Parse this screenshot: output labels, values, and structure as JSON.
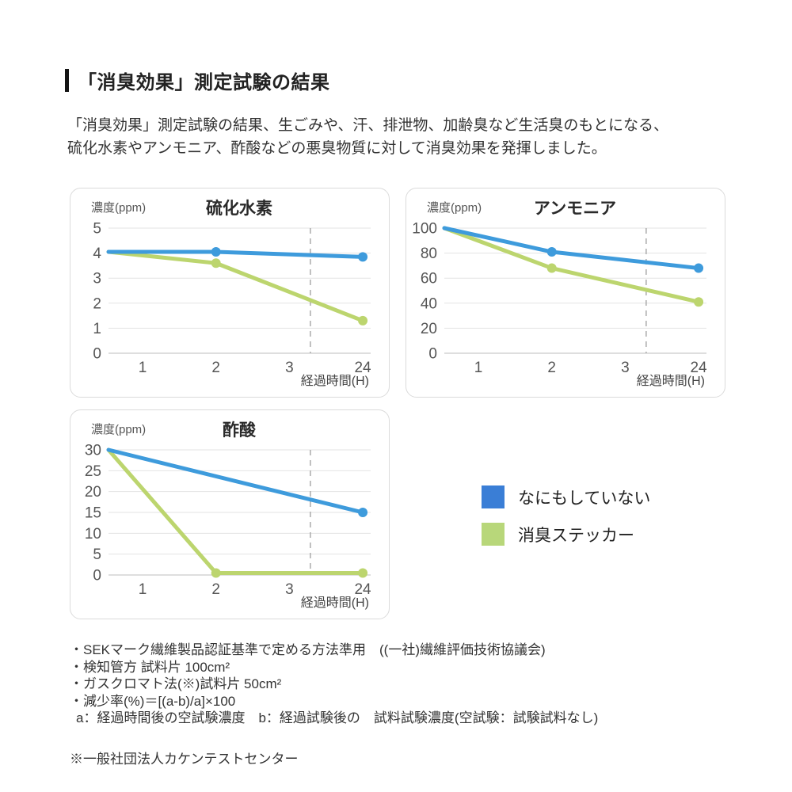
{
  "page": {
    "title": "「消臭効果」測定試験の結果",
    "intro": "「消臭効果」測定試験の結果、生ごみや、汗、排泄物、加齢臭など生活臭のもとになる、\n硫化水素やアンモニア、酢酸などの悪臭物質に対して消臭効果を発揮しました。"
  },
  "colors": {
    "blue_line": "#3E9BDC",
    "green_line": "#BCD56E",
    "blue_legend": "#3A7ED6",
    "green_legend": "#B8D77A",
    "grid": "#E3E3E3",
    "axis": "#C9C9C9",
    "break_line": "#ABABAB",
    "tick_text": "#555555"
  },
  "legend": {
    "items": [
      {
        "key": "untreated",
        "label": "なにもしていない",
        "color": "#3A7ED6"
      },
      {
        "key": "sticker",
        "label": "消臭ステッカー",
        "color": "#B8D77A"
      }
    ]
  },
  "chart_data": [
    {
      "type": "line",
      "id": "hydrogen-sulfide",
      "title": "硫化水素",
      "ylabel": "濃度(ppm)",
      "xlabel": "経過時間(H)",
      "ylim": [
        0,
        5
      ],
      "y_ticks": [
        0,
        1,
        2,
        3,
        4,
        5
      ],
      "x_ticks": [
        "1",
        "2",
        "3",
        "24"
      ],
      "axis_break_between": [
        "3",
        "24"
      ],
      "grid": true,
      "series": [
        {
          "key": "untreated",
          "name": "なにもしていない",
          "color": "#3E9BDC",
          "points": [
            {
              "x": "start",
              "y": 4.05,
              "dot": false
            },
            {
              "x": "2",
              "y": 4.05,
              "dot": true
            },
            {
              "x": "24",
              "y": 3.85,
              "dot": true
            }
          ]
        },
        {
          "key": "sticker",
          "name": "消臭ステッカー",
          "color": "#BCD56E",
          "points": [
            {
              "x": "start",
              "y": 4.05,
              "dot": false
            },
            {
              "x": "2",
              "y": 3.6,
              "dot": true
            },
            {
              "x": "24",
              "y": 1.3,
              "dot": true
            }
          ]
        }
      ]
    },
    {
      "type": "line",
      "id": "ammonia",
      "title": "アンモニア",
      "ylabel": "濃度(ppm)",
      "xlabel": "経過時間(H)",
      "ylim": [
        0,
        100
      ],
      "y_ticks": [
        0,
        20,
        40,
        60,
        80,
        100
      ],
      "x_ticks": [
        "1",
        "2",
        "3",
        "24"
      ],
      "axis_break_between": [
        "3",
        "24"
      ],
      "grid": true,
      "series": [
        {
          "key": "untreated",
          "name": "なにもしていない",
          "color": "#3E9BDC",
          "points": [
            {
              "x": "start",
              "y": 100,
              "dot": false
            },
            {
              "x": "2",
              "y": 81,
              "dot": true
            },
            {
              "x": "24",
              "y": 68,
              "dot": true
            }
          ]
        },
        {
          "key": "sticker",
          "name": "消臭ステッカー",
          "color": "#BCD56E",
          "points": [
            {
              "x": "start",
              "y": 100,
              "dot": false
            },
            {
              "x": "2",
              "y": 68,
              "dot": true
            },
            {
              "x": "24",
              "y": 41,
              "dot": true
            }
          ]
        }
      ]
    },
    {
      "type": "line",
      "id": "acetic-acid",
      "title": "酢酸",
      "ylabel": "濃度(ppm)",
      "xlabel": "経過時間(H)",
      "ylim": [
        0,
        30
      ],
      "y_ticks": [
        0,
        5,
        10,
        15,
        20,
        25,
        30
      ],
      "x_ticks": [
        "1",
        "2",
        "3",
        "24"
      ],
      "axis_break_between": [
        "3",
        "24"
      ],
      "grid": true,
      "series": [
        {
          "key": "untreated",
          "name": "なにもしていない",
          "color": "#3E9BDC",
          "points": [
            {
              "x": "start",
              "y": 30,
              "dot": false
            },
            {
              "x": "24",
              "y": 15,
              "dot": true
            }
          ]
        },
        {
          "key": "sticker",
          "name": "消臭ステッカー",
          "color": "#BCD56E",
          "points": [
            {
              "x": "start",
              "y": 30,
              "dot": false
            },
            {
              "x": "2",
              "y": 0,
              "dot": true
            },
            {
              "x": "24",
              "y": 0,
              "dot": true
            }
          ]
        }
      ]
    }
  ],
  "notes": {
    "lines": [
      "・SEKマーク繊維製品認証基準で定める方法準用　((一社)繊維評価技術協議会)",
      "・検知管方 試料片 100cm²",
      "・ガスクロマト法(※)試料片 50cm²",
      "・減少率(%)＝[(a-b)/a]×100",
      "a：経過時間後の空試験濃度　b：経過試験後の　試料試験濃度(空試験：試験試料なし)"
    ],
    "agency": "※一般社団法人カケンテストセンター"
  }
}
